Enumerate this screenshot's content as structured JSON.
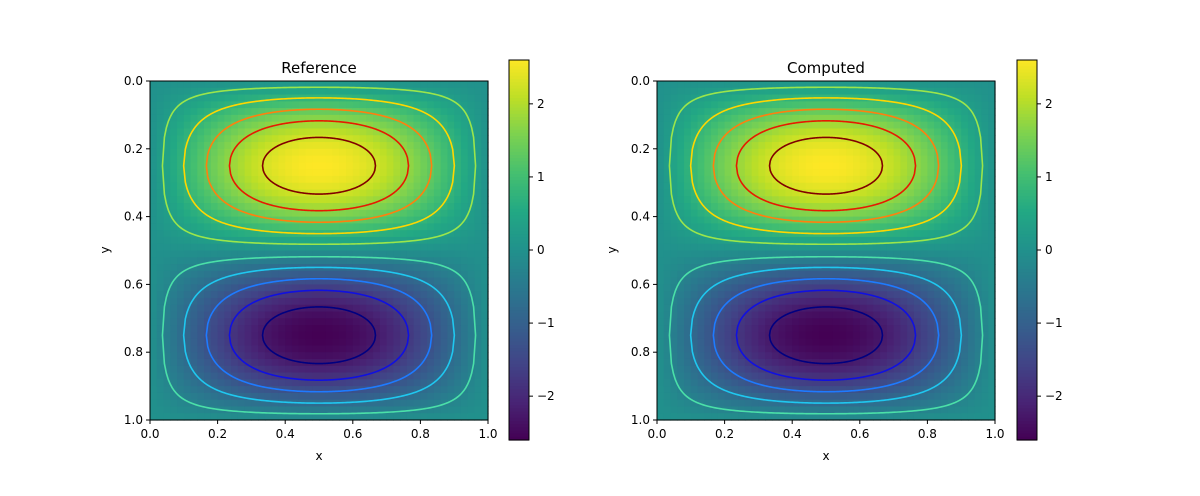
{
  "chart_data": [
    {
      "type": "heatmap",
      "title": "Reference",
      "xlabel": "x",
      "ylabel": "y",
      "xlim": [
        0.0,
        1.0
      ],
      "ylim": [
        1.0,
        0.0
      ],
      "x_ticks": [
        "0.0",
        "0.2",
        "0.4",
        "0.6",
        "0.8",
        "1.0"
      ],
      "y_ticks": [
        "0.0",
        "0.2",
        "0.4",
        "0.6",
        "0.8",
        "1.0"
      ],
      "colormap": "viridis",
      "field": "2.6 * sin(pi*x) * sin(2*pi*y)",
      "grid_resolution": 50,
      "color_range": [
        -2.6,
        2.6
      ],
      "colorbar_ticks": [
        {
          "value": 2,
          "label": "2"
        },
        {
          "value": 1,
          "label": "1"
        },
        {
          "value": 0,
          "label": "0"
        },
        {
          "value": -1,
          "label": "−1"
        },
        {
          "value": -2,
          "label": "−2"
        }
      ],
      "contour_levels": [
        {
          "value": 2.25,
          "color": "#800000"
        },
        {
          "value": 1.75,
          "color": "#e61a00"
        },
        {
          "value": 1.3,
          "color": "#ff7f0e"
        },
        {
          "value": 0.8,
          "color": "#ffd700"
        },
        {
          "value": 0.3,
          "color": "#9be64b"
        },
        {
          "value": -0.3,
          "color": "#4be0a8"
        },
        {
          "value": -0.8,
          "color": "#1fc8f0"
        },
        {
          "value": -1.3,
          "color": "#1e7bff"
        },
        {
          "value": -1.75,
          "color": "#1010e0"
        },
        {
          "value": -2.25,
          "color": "#000080"
        }
      ]
    },
    {
      "type": "heatmap",
      "title": "Computed",
      "xlabel": "x",
      "ylabel": "y",
      "xlim": [
        0.0,
        1.0
      ],
      "ylim": [
        1.0,
        0.0
      ],
      "x_ticks": [
        "0.0",
        "0.2",
        "0.4",
        "0.6",
        "0.8",
        "1.0"
      ],
      "y_ticks": [
        "0.0",
        "0.2",
        "0.4",
        "0.6",
        "0.8",
        "1.0"
      ],
      "colormap": "viridis",
      "field": "2.6 * sin(pi*x) * sin(2*pi*y)",
      "grid_resolution": 50,
      "color_range": [
        -2.6,
        2.6
      ],
      "colorbar_ticks": [
        {
          "value": 2,
          "label": "2"
        },
        {
          "value": 1,
          "label": "1"
        },
        {
          "value": 0,
          "label": "0"
        },
        {
          "value": -1,
          "label": "−1"
        },
        {
          "value": -2,
          "label": "−2"
        }
      ],
      "contour_levels": [
        {
          "value": 2.25,
          "color": "#800000"
        },
        {
          "value": 1.75,
          "color": "#e61a00"
        },
        {
          "value": 1.3,
          "color": "#ff7f0e"
        },
        {
          "value": 0.8,
          "color": "#ffd700"
        },
        {
          "value": 0.3,
          "color": "#9be64b"
        },
        {
          "value": -0.3,
          "color": "#4be0a8"
        },
        {
          "value": -0.8,
          "color": "#1fc8f0"
        },
        {
          "value": -1.3,
          "color": "#1e7bff"
        },
        {
          "value": -1.75,
          "color": "#1010e0"
        },
        {
          "value": -2.25,
          "color": "#000080"
        }
      ]
    }
  ]
}
